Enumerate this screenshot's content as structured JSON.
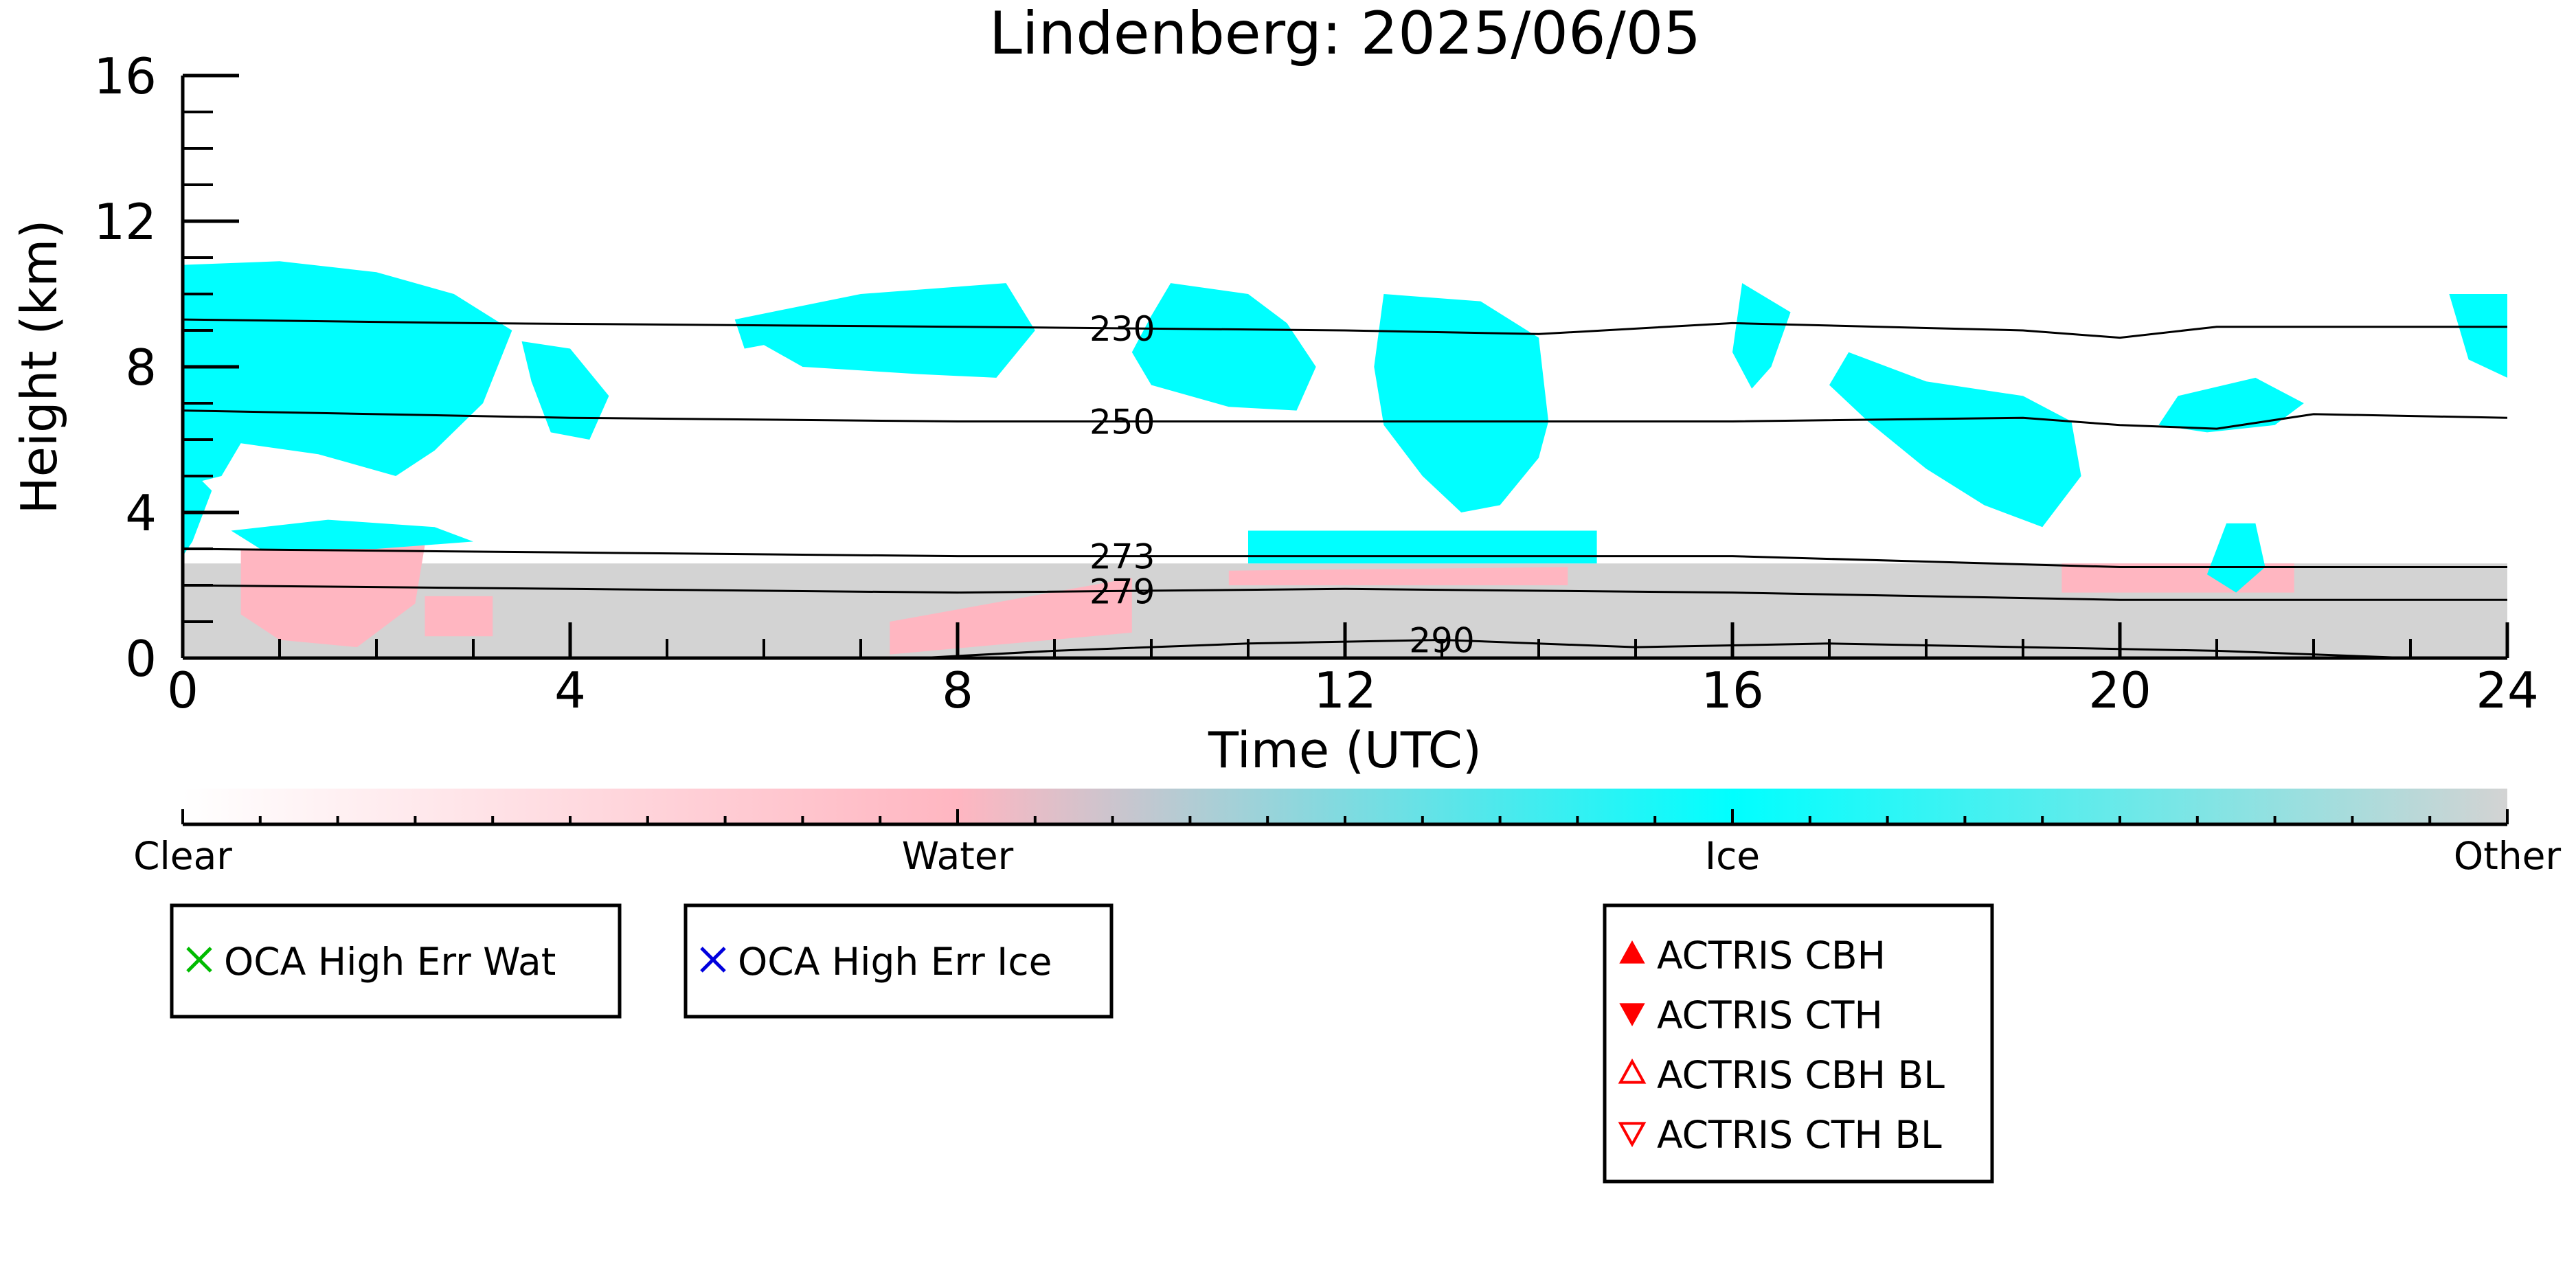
{
  "chart_data": {
    "type": "heatmap",
    "title": "Lindenberg: 2025/06/05",
    "xlabel": "Time (UTC)",
    "ylabel": "Height (km)",
    "xlim": [
      0,
      24
    ],
    "ylim": [
      0,
      16
    ],
    "x_ticks": [
      "0",
      "4",
      "8",
      "12",
      "16",
      "20",
      "24"
    ],
    "y_ticks": [
      "0",
      "4",
      "8",
      "12",
      "16"
    ],
    "categories": [
      "Clear",
      "Water",
      "Ice",
      "Other"
    ],
    "category_colors": {
      "Clear": "#ffffff",
      "Water": "#ffb6c1",
      "Ice": "#00ffff",
      "Other": "#d3d3d3"
    },
    "temperature_contours": [
      {
        "label": "230",
        "points": [
          [
            0,
            9.3
          ],
          [
            3,
            9.2
          ],
          [
            8,
            9.1
          ],
          [
            12,
            9.0
          ],
          [
            14,
            8.9
          ],
          [
            16,
            9.2
          ],
          [
            19,
            9.0
          ],
          [
            20,
            8.8
          ],
          [
            21,
            9.1
          ],
          [
            24,
            9.1
          ]
        ]
      },
      {
        "label": "250",
        "points": [
          [
            0,
            6.8
          ],
          [
            4,
            6.6
          ],
          [
            8,
            6.5
          ],
          [
            12,
            6.5
          ],
          [
            16,
            6.5
          ],
          [
            19,
            6.6
          ],
          [
            20,
            6.4
          ],
          [
            21,
            6.3
          ],
          [
            22,
            6.7
          ],
          [
            24,
            6.6
          ]
        ]
      },
      {
        "label": "273",
        "points": [
          [
            0,
            3.0
          ],
          [
            4,
            2.9
          ],
          [
            8,
            2.8
          ],
          [
            12,
            2.8
          ],
          [
            16,
            2.8
          ],
          [
            20,
            2.5
          ],
          [
            24,
            2.5
          ]
        ]
      },
      {
        "label": "279",
        "points": [
          [
            0,
            2.0
          ],
          [
            4,
            1.9
          ],
          [
            8,
            1.8
          ],
          [
            12,
            1.9
          ],
          [
            16,
            1.8
          ],
          [
            20,
            1.6
          ],
          [
            24,
            1.6
          ]
        ]
      },
      {
        "label": "290",
        "points": [
          [
            7.6,
            0.0
          ],
          [
            9,
            0.2
          ],
          [
            11,
            0.4
          ],
          [
            13,
            0.5
          ],
          [
            15,
            0.3
          ],
          [
            17,
            0.4
          ],
          [
            19,
            0.3
          ],
          [
            21,
            0.2
          ],
          [
            23,
            0.0
          ]
        ]
      }
    ],
    "cloud_regions": [
      {
        "type": "Ice",
        "polygon": [
          [
            0,
            10.8
          ],
          [
            1,
            10.9
          ],
          [
            2,
            10.6
          ],
          [
            2.8,
            10.0
          ],
          [
            3.4,
            9.0
          ],
          [
            3.1,
            7.0
          ],
          [
            2.6,
            5.7
          ],
          [
            2.2,
            5.0
          ],
          [
            1.4,
            5.6
          ],
          [
            0.6,
            5.9
          ],
          [
            0.4,
            5.0
          ],
          [
            0.1,
            4.8
          ],
          [
            0,
            5.2
          ]
        ]
      },
      {
        "type": "Ice",
        "polygon": [
          [
            0,
            5.4
          ],
          [
            0.3,
            4.6
          ],
          [
            0.1,
            3.2
          ],
          [
            0,
            2.8
          ]
        ]
      },
      {
        "type": "Ice",
        "polygon": [
          [
            0.5,
            3.5
          ],
          [
            1.5,
            3.8
          ],
          [
            2.6,
            3.6
          ],
          [
            3.0,
            3.2
          ],
          [
            2.0,
            3.0
          ],
          [
            0.8,
            3.0
          ]
        ]
      },
      {
        "type": "Ice",
        "polygon": [
          [
            3.5,
            8.7
          ],
          [
            4.0,
            8.5
          ],
          [
            4.4,
            7.2
          ],
          [
            4.2,
            6.0
          ],
          [
            3.8,
            6.2
          ],
          [
            3.6,
            7.6
          ]
        ]
      },
      {
        "type": "Ice",
        "polygon": [
          [
            5.7,
            9.3
          ],
          [
            7.0,
            10.0
          ],
          [
            8.5,
            10.3
          ],
          [
            8.8,
            9.0
          ],
          [
            8.4,
            7.7
          ],
          [
            7.6,
            7.8
          ],
          [
            6.4,
            8.0
          ],
          [
            6.0,
            8.6
          ],
          [
            5.8,
            8.5
          ]
        ]
      },
      {
        "type": "Ice",
        "polygon": [
          [
            10.2,
            10.3
          ],
          [
            11.0,
            10.0
          ],
          [
            11.4,
            9.2
          ],
          [
            11.7,
            8.0
          ],
          [
            11.5,
            6.8
          ],
          [
            10.8,
            6.9
          ],
          [
            10.0,
            7.5
          ],
          [
            9.8,
            8.4
          ],
          [
            10.0,
            9.4
          ]
        ]
      },
      {
        "type": "Ice",
        "polygon": [
          [
            12.4,
            10.0
          ],
          [
            13.4,
            9.8
          ],
          [
            14.0,
            8.8
          ],
          [
            14.1,
            6.5
          ],
          [
            14.0,
            5.5
          ],
          [
            13.6,
            4.2
          ],
          [
            13.2,
            4.0
          ],
          [
            12.8,
            5.0
          ],
          [
            12.4,
            6.4
          ],
          [
            12.3,
            8.0
          ]
        ]
      },
      {
        "type": "Ice",
        "polygon": [
          [
            16.1,
            10.3
          ],
          [
            16.6,
            9.5
          ],
          [
            16.4,
            8.0
          ],
          [
            16.2,
            7.4
          ],
          [
            16.0,
            8.4
          ]
        ]
      },
      {
        "type": "Ice",
        "polygon": [
          [
            17.2,
            8.4
          ],
          [
            18.0,
            7.6
          ],
          [
            19.0,
            7.2
          ],
          [
            19.5,
            6.5
          ],
          [
            19.6,
            5.0
          ],
          [
            19.2,
            3.6
          ],
          [
            18.6,
            4.2
          ],
          [
            18.0,
            5.2
          ],
          [
            17.4,
            6.5
          ],
          [
            17.0,
            7.5
          ]
        ]
      },
      {
        "type": "Ice",
        "polygon": [
          [
            20.6,
            7.2
          ],
          [
            21.4,
            7.7
          ],
          [
            21.9,
            7.0
          ],
          [
            21.6,
            6.4
          ],
          [
            20.9,
            6.2
          ],
          [
            20.4,
            6.4
          ]
        ]
      },
      {
        "type": "Ice",
        "polygon": [
          [
            23.4,
            10.0
          ],
          [
            24,
            10.0
          ],
          [
            24,
            7.7
          ],
          [
            23.6,
            8.2
          ]
        ]
      },
      {
        "type": "Ice",
        "polygon": [
          [
            21.1,
            3.7
          ],
          [
            21.4,
            3.7
          ],
          [
            21.5,
            2.5
          ],
          [
            21.2,
            1.8
          ],
          [
            20.9,
            2.3
          ]
        ]
      },
      {
        "type": "Ice",
        "polygon": [
          [
            11.0,
            3.5
          ],
          [
            14.6,
            3.5
          ],
          [
            14.6,
            2.6
          ],
          [
            11.0,
            2.6
          ]
        ]
      },
      {
        "type": "Water",
        "polygon": [
          [
            0.6,
            3.0
          ],
          [
            2.5,
            3.1
          ],
          [
            2.4,
            1.5
          ],
          [
            1.8,
            0.3
          ],
          [
            1.0,
            0.5
          ],
          [
            0.6,
            1.2
          ]
        ]
      },
      {
        "type": "Water",
        "polygon": [
          [
            2.5,
            1.7
          ],
          [
            3.2,
            1.7
          ],
          [
            3.2,
            0.6
          ],
          [
            2.5,
            0.6
          ]
        ]
      },
      {
        "type": "Water",
        "polygon": [
          [
            7.3,
            1.0
          ],
          [
            9.8,
            2.2
          ],
          [
            9.8,
            0.7
          ],
          [
            7.3,
            0.1
          ]
        ]
      },
      {
        "type": "Water",
        "polygon": [
          [
            10.8,
            2.4
          ],
          [
            14.3,
            2.5
          ],
          [
            14.3,
            2.0
          ],
          [
            10.8,
            2.0
          ]
        ]
      },
      {
        "type": "Water",
        "polygon": [
          [
            19.4,
            2.6
          ],
          [
            21.8,
            2.6
          ],
          [
            21.8,
            1.8
          ],
          [
            19.4,
            1.8
          ]
        ]
      },
      {
        "type": "Other",
        "polygon": [
          [
            0,
            2.6
          ],
          [
            24,
            2.6
          ],
          [
            24,
            0
          ],
          [
            0,
            0
          ]
        ]
      }
    ],
    "colorbar_labels": [
      "Clear",
      "Water",
      "Ice",
      "Other"
    ],
    "legend_boxes": [
      {
        "entries": [
          {
            "label": "OCA High Err Wat",
            "marker": "x-icon",
            "color": "#00bb00"
          }
        ]
      },
      {
        "entries": [
          {
            "label": "OCA High Err Ice",
            "marker": "x-icon",
            "color": "#0000dd"
          }
        ]
      },
      {
        "entries": [
          {
            "label": "ACTRIS CBH",
            "marker": "triangle-up-filled-icon",
            "color": "#ff0000"
          },
          {
            "label": "ACTRIS CTH",
            "marker": "triangle-down-filled-icon",
            "color": "#ff0000"
          },
          {
            "label": "ACTRIS CBH BL",
            "marker": "triangle-up-open-icon",
            "color": "#ff0000"
          },
          {
            "label": "ACTRIS CTH BL",
            "marker": "triangle-down-open-icon",
            "color": "#ff0000"
          }
        ]
      }
    ]
  }
}
